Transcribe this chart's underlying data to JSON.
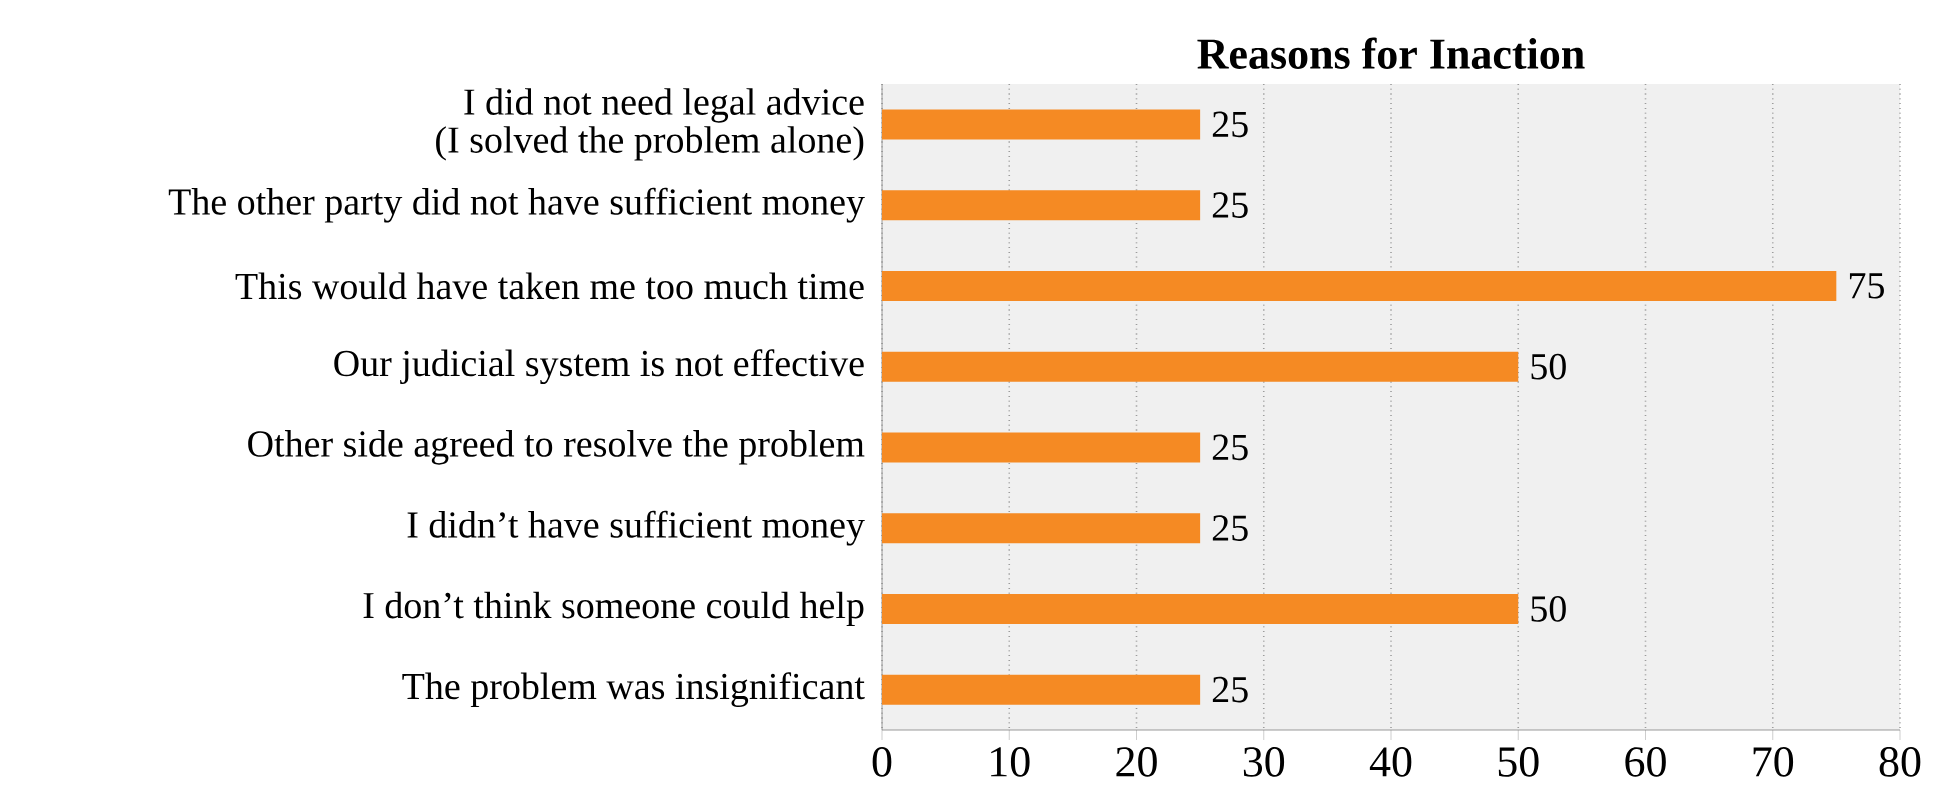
{
  "chart_data": {
    "type": "bar",
    "orientation": "horizontal",
    "title": "Reasons for Inaction",
    "categories": [
      "I did not need legal advice\n(I solved the problem alone)",
      "The other party did not have sufficient money",
      "This would have taken me too much time",
      "Our judicial system is not effective",
      "Other side agreed to resolve the problem",
      "I didn’t have sufficient money",
      "I don’t think someone could help",
      "The problem was insignificant"
    ],
    "values": [
      25,
      25,
      75,
      50,
      25,
      25,
      50,
      25
    ],
    "color": "#f58a23",
    "xlim": [
      0,
      80
    ],
    "xticks": [
      0,
      10,
      20,
      30,
      40,
      50,
      60,
      70,
      80
    ],
    "grid": "x",
    "data_labels": true
  }
}
